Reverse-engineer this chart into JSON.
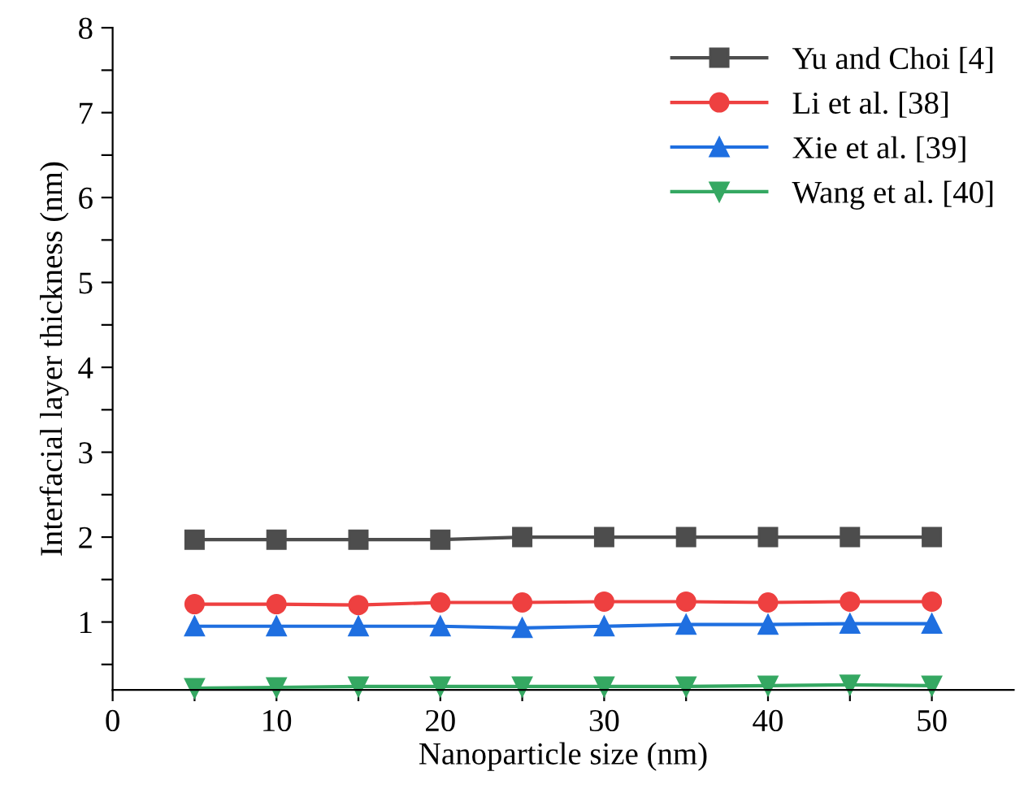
{
  "chart_data": {
    "type": "line",
    "xlabel": "Nanoparticle size (nm)",
    "ylabel": "Interfacial layer thickness (nm)",
    "x": [
      5,
      10,
      15,
      20,
      25,
      30,
      35,
      40,
      45,
      50
    ],
    "series": [
      {
        "name": "Yu and Choi [4]",
        "color": "#4d4d4d",
        "marker": "square",
        "values": [
          1.97,
          1.97,
          1.97,
          1.97,
          2.0,
          2.0,
          2.0,
          2.0,
          2.0,
          2.0
        ]
      },
      {
        "name": "Li et al. [38]",
        "color": "#ee4040",
        "marker": "circle",
        "values": [
          1.21,
          1.21,
          1.2,
          1.23,
          1.23,
          1.24,
          1.24,
          1.23,
          1.24,
          1.24
        ]
      },
      {
        "name": "Xie et al. [39]",
        "color": "#1f6fe0",
        "marker": "triangle",
        "values": [
          0.95,
          0.95,
          0.95,
          0.95,
          0.93,
          0.95,
          0.97,
          0.97,
          0.98,
          0.98
        ]
      },
      {
        "name": "Wang et al. [40]",
        "color": "#35a862",
        "marker": "triangle_down",
        "values": [
          0.22,
          0.23,
          0.24,
          0.24,
          0.24,
          0.24,
          0.24,
          0.25,
          0.26,
          0.25
        ]
      }
    ],
    "xlim": [
      0,
      55
    ],
    "ylim": [
      0.2,
      8
    ],
    "xticks": [
      0,
      {
        "value": 5,
        "label": null
      },
      10,
      {
        "value": 15,
        "label": null
      },
      20,
      {
        "value": 25,
        "label": null
      },
      30,
      {
        "value": 35,
        "label": null
      },
      40,
      {
        "value": 45,
        "label": null
      },
      50
    ],
    "yticks": [
      {
        "value": 0.5,
        "label": null
      },
      1,
      {
        "value": 1.5,
        "label": null
      },
      2,
      {
        "value": 2.5,
        "label": null
      },
      3,
      {
        "value": 3.5,
        "label": null
      },
      4,
      {
        "value": 4.5,
        "label": null
      },
      5,
      {
        "value": 5.5,
        "label": null
      },
      6,
      {
        "value": 6.5,
        "label": null
      },
      7,
      {
        "value": 7.5,
        "label": null
      },
      8
    ],
    "legend": "top right",
    "grid": false,
    "line_style": "solid"
  }
}
